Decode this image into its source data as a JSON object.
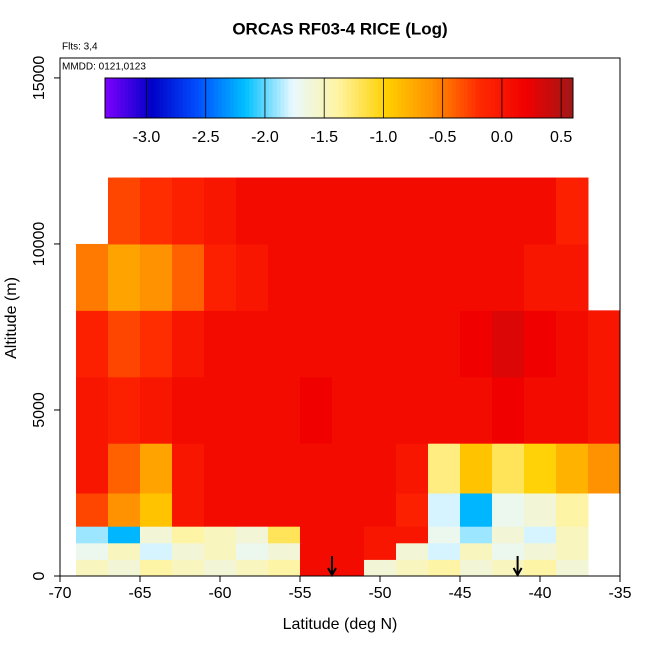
{
  "chart_data": {
    "type": "heatmap",
    "title": "ORCAS RF03-4 RICE (Log)",
    "annotations": [
      "Flts: 3,4",
      "MMDD: 0121,0123"
    ],
    "xlabel": "Latitude (deg N)",
    "ylabel": "Altitude (m)",
    "xlim": [
      -70,
      -35
    ],
    "xticks": [
      -70,
      -65,
      -60,
      -55,
      -50,
      -45,
      -40,
      -35
    ],
    "ylim": [
      0,
      15600
    ],
    "yticks": [
      0,
      5000,
      10000,
      15000
    ],
    "x_bins": [
      -69,
      -67,
      -65,
      -63,
      -61,
      -59,
      -57,
      -55,
      -53,
      -51,
      -49,
      -47,
      -45,
      -43,
      -41,
      -39,
      -37,
      -35
    ],
    "y_bins": [
      0,
      500,
      1000,
      1500,
      2500,
      4000,
      6000,
      8000,
      10000,
      12000
    ],
    "z": [
      [
        -1.5,
        -1.6,
        -1.4,
        -1.5,
        -1.6,
        -1.5,
        -1.4,
        0.1,
        0.1,
        -1.6,
        -1.5,
        -1.4,
        -1.6,
        -1.5,
        -1.4,
        -1.6,
        null
      ],
      [
        -1.7,
        -1.5,
        -1.8,
        -1.6,
        -1.5,
        -1.7,
        -1.6,
        0.1,
        0.1,
        0.0,
        -1.6,
        -1.8,
        -1.5,
        -1.7,
        -1.6,
        -1.5,
        null
      ],
      [
        -1.9,
        -2.2,
        -1.6,
        -1.4,
        -1.5,
        -1.6,
        -1.2,
        0.1,
        0.1,
        0.0,
        0.0,
        -1.7,
        -1.9,
        -1.6,
        -1.8,
        -1.5,
        null
      ],
      [
        -0.3,
        -0.6,
        -0.9,
        0.0,
        0.1,
        0.1,
        0.1,
        0.1,
        0.1,
        0.1,
        -0.1,
        -1.8,
        -2.2,
        -1.7,
        -1.6,
        -1.4,
        null
      ],
      [
        0.0,
        -0.4,
        -0.7,
        0.0,
        0.1,
        0.1,
        0.1,
        0.1,
        0.1,
        0.1,
        0.0,
        -1.3,
        -0.9,
        -1.2,
        -1.0,
        -0.8,
        -0.6
      ],
      [
        0.0,
        -0.1,
        0.0,
        0.1,
        0.1,
        0.1,
        0.1,
        0.2,
        0.1,
        0.1,
        0.1,
        0.1,
        0.1,
        0.2,
        0.1,
        0.1,
        0.0
      ],
      [
        -0.1,
        -0.3,
        -0.2,
        0.0,
        0.1,
        0.1,
        0.1,
        0.1,
        0.1,
        0.1,
        0.1,
        0.1,
        0.2,
        0.3,
        0.2,
        0.1,
        0.0
      ],
      [
        -0.5,
        -0.7,
        -0.6,
        -0.4,
        -0.1,
        0.0,
        0.1,
        0.1,
        0.1,
        0.1,
        0.1,
        0.1,
        0.1,
        0.1,
        0.0,
        0.0,
        null
      ],
      [
        null,
        -0.3,
        -0.2,
        -0.1,
        0.0,
        0.1,
        0.1,
        0.1,
        0.1,
        0.1,
        0.1,
        0.1,
        0.1,
        0.1,
        0.1,
        -0.1,
        null
      ]
    ],
    "zlim": [
      -3.35,
      0.6
    ],
    "colorscale": [
      "#7f00ff",
      "#0000c8",
      "#0050ff",
      "#00c0ff",
      "#e8f8ff",
      "#fff4a0",
      "#ffd000",
      "#ff9000",
      "#ff2a00",
      "#f00000",
      "#a01818"
    ],
    "zticks": [
      {
        "value": -3,
        "label": "-3.0"
      },
      -2.5,
      {
        "value": -2,
        "label": "-2.0"
      },
      -1.5,
      {
        "value": -1,
        "label": "-1.0"
      },
      -0.5,
      {
        "value": 0,
        "label": "0.0"
      },
      0.5
    ],
    "arrows_x": [
      -53,
      -41.4
    ]
  }
}
